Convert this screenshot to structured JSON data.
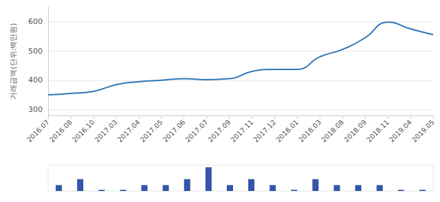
{
  "chart_data": [
    {
      "type": "line",
      "y_label": "거래금액(단위:백만원)",
      "categories": [
        "2016.07",
        "2016.08",
        "2016.10",
        "2017.03",
        "2017.04",
        "2017.05",
        "2017.06",
        "2017.07",
        "2017.09",
        "2017.11",
        "2017.12",
        "2018.01",
        "2018.03",
        "2018.08",
        "2018.09",
        "2018.11",
        "2019.04",
        "2019.05"
      ],
      "values": [
        350,
        355,
        362,
        385,
        395,
        400,
        405,
        402,
        405,
        430,
        437,
        437,
        480,
        505,
        545,
        598,
        575,
        555
      ],
      "color": "#2e75b6",
      "ylim": [
        280,
        650
      ],
      "yticks": [
        300,
        400,
        500,
        600
      ],
      "grid": true
    },
    {
      "type": "bar",
      "categories": [
        "2016.07",
        "2016.08",
        "2016.10",
        "2017.03",
        "2017.04",
        "2017.05",
        "2017.06",
        "2017.07",
        "2017.09",
        "2017.11",
        "2017.12",
        "2018.01",
        "2018.03",
        "2018.08",
        "2018.09",
        "2018.11",
        "2019.04",
        "2019.05"
      ],
      "values": [
        1,
        2,
        0.2,
        0.2,
        1,
        1,
        2,
        4,
        1,
        2,
        1,
        0.2,
        2,
        1,
        1,
        1,
        0.2,
        0.2
      ],
      "color": "#3355aa",
      "ylim": [
        0,
        4.4
      ],
      "tick_labels": false
    }
  ]
}
